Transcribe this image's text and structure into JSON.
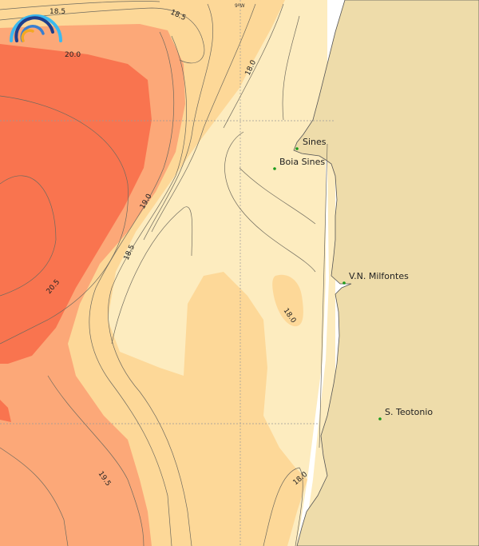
{
  "map": {
    "colors": {
      "sea_warmest": "#f9744f",
      "sea_warm": "#fca878",
      "sea_mid": "#fdd898",
      "sea_cool": "#fdecbf",
      "land": "#eedcaa",
      "station": "#1a9a1a"
    },
    "grid_label": "9ºW",
    "contour_labels": [
      "18.5",
      "18.5",
      "20.0",
      "18.0",
      "19.0",
      "18.5",
      "20.5",
      "18.0",
      "19.5",
      "18.0"
    ],
    "places": [
      {
        "name": "Sines"
      },
      {
        "name": "Boia Sines"
      },
      {
        "name": "V.N. Milfontes"
      },
      {
        "name": "S. Teotonio"
      }
    ],
    "logo": "rainbow-arc-logo"
  }
}
